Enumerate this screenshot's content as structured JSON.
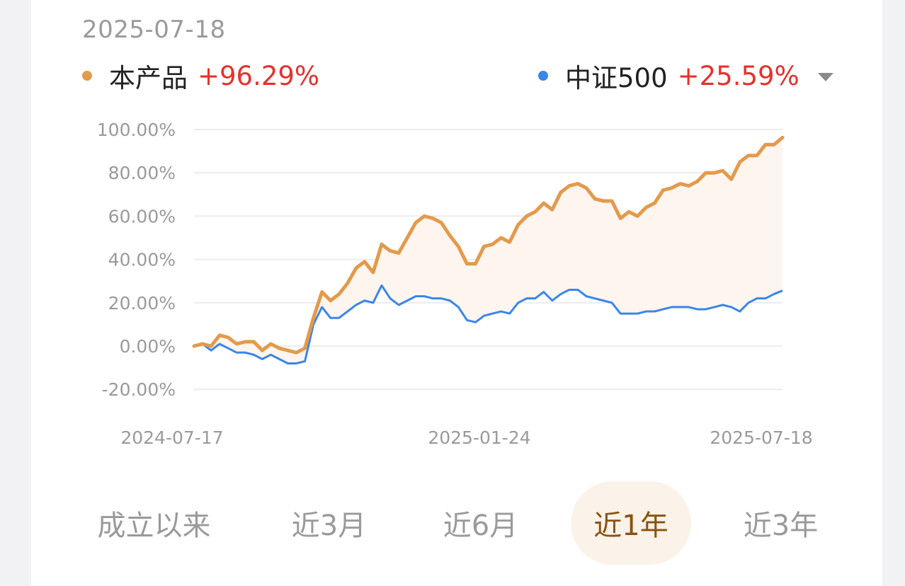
{
  "header": {
    "date": "2025-07-18"
  },
  "legend": {
    "product": {
      "name": "本产品",
      "value": "+96.29%",
      "color": "#e39a4c"
    },
    "benchmark": {
      "name": "中证500",
      "value": "+25.59%",
      "color": "#3a86e8"
    }
  },
  "tabs": [
    {
      "label": "成立以来",
      "active": false
    },
    {
      "label": "近3月",
      "active": false
    },
    {
      "label": "近6月",
      "active": false
    },
    {
      "label": "近1年",
      "active": true
    },
    {
      "label": "近3年",
      "active": false
    }
  ],
  "chart_data": {
    "type": "line",
    "y_ticks": [
      "100.00%",
      "80.00%",
      "60.00%",
      "40.00%",
      "20.00%",
      "0.00%",
      "-20.00%"
    ],
    "ylim": [
      -20,
      100
    ],
    "x_tick_labels": [
      "2024-07-17",
      "2025-01-24",
      "2025-07-18"
    ],
    "grid": true,
    "series": [
      {
        "name": "本产品",
        "color": "#e39a4c",
        "values": [
          0,
          1,
          0,
          5,
          4,
          1,
          2,
          2,
          -2,
          1,
          -1,
          -2,
          -3,
          -1,
          13,
          25,
          21,
          24,
          29,
          36,
          39,
          34,
          47,
          44,
          43,
          50,
          57,
          60,
          59,
          57,
          51,
          46,
          38,
          38,
          46,
          47,
          50,
          48,
          56,
          60,
          62,
          66,
          63,
          71,
          74,
          75,
          73,
          68,
          67,
          67,
          59,
          62,
          60,
          64,
          66,
          72,
          73,
          75,
          74,
          76,
          80,
          80,
          81,
          77,
          85,
          88,
          88,
          93,
          93,
          96.29
        ]
      },
      {
        "name": "中证500",
        "color": "#3a86e8",
        "values": [
          0,
          1,
          -2,
          1,
          -1,
          -3,
          -3,
          -4,
          -6,
          -4,
          -6,
          -8,
          -8,
          -7,
          10,
          18,
          13,
          13,
          16,
          19,
          21,
          20,
          28,
          22,
          19,
          21,
          23,
          23,
          22,
          22,
          21,
          18,
          12,
          11,
          14,
          15,
          16,
          15,
          20,
          22,
          22,
          25,
          21,
          24,
          26,
          26,
          23,
          22,
          21,
          20,
          15,
          15,
          15,
          16,
          16,
          17,
          18,
          18,
          18,
          17,
          17,
          18,
          19,
          18,
          16,
          20,
          22,
          22,
          24,
          25.59
        ]
      }
    ]
  }
}
